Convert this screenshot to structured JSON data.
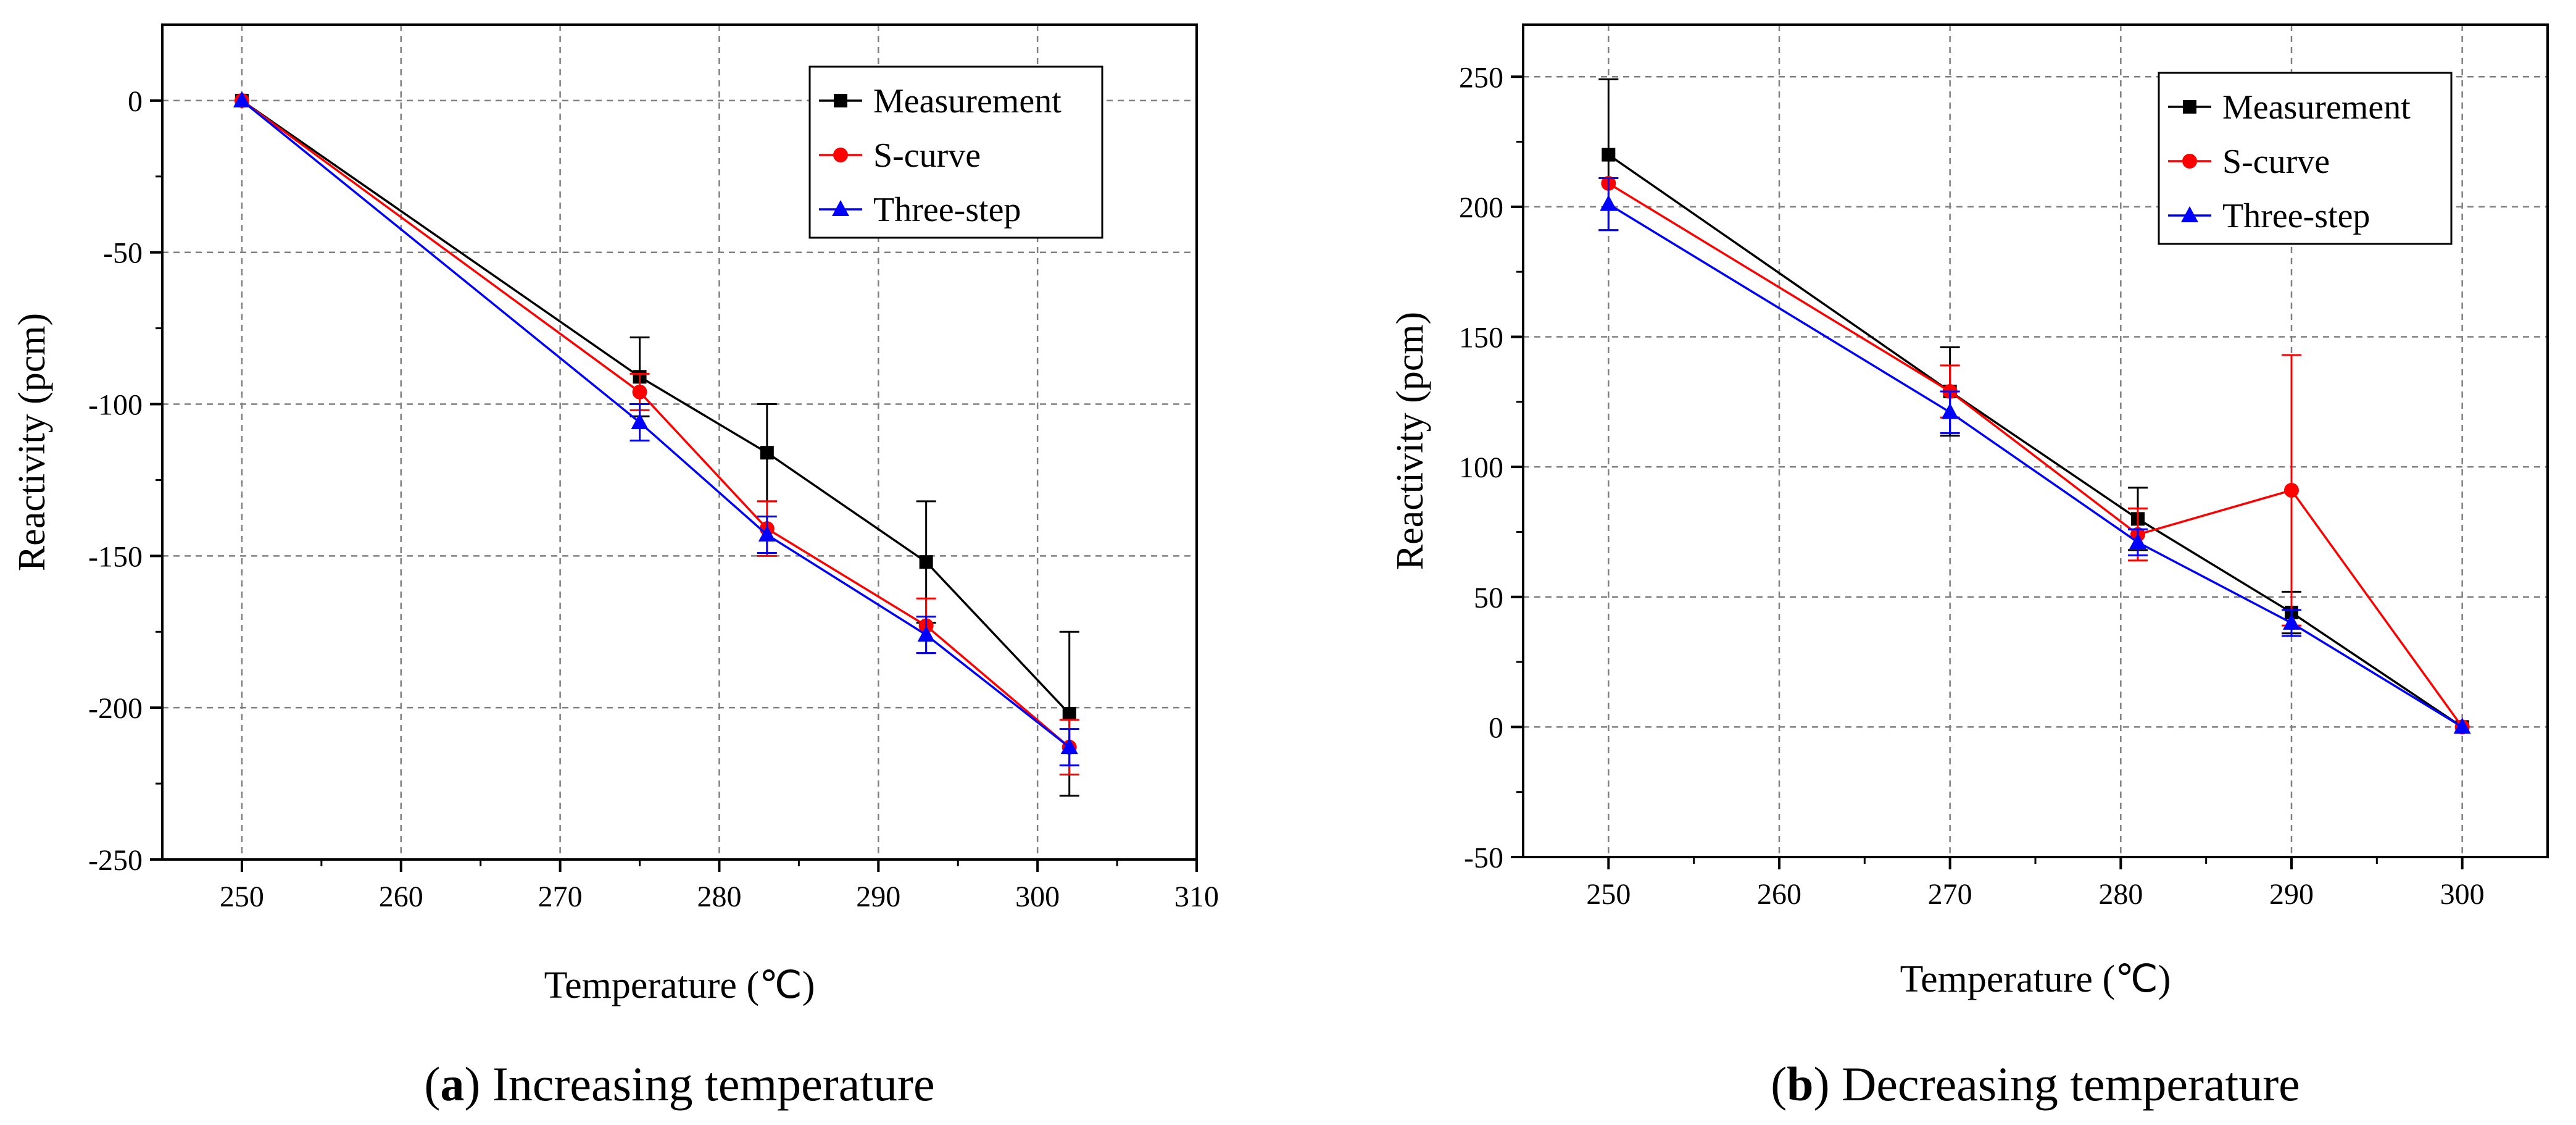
{
  "colors": {
    "Measurement": "#000000",
    "S-curve": "#ff0000",
    "Three-step": "#0000ff",
    "grid": "#808080"
  },
  "chart_data": [
    {
      "type": "line",
      "caption_letter": "a",
      "caption_text": "Increasing temperature",
      "xlabel": "Temperature (℃)",
      "ylabel": "Reactivity (pcm)",
      "xlim": [
        245,
        310
      ],
      "ylim": [
        -250,
        25
      ],
      "xticks": [
        250,
        260,
        270,
        280,
        290,
        300,
        310
      ],
      "yticks": [
        0,
        -50,
        -100,
        -150,
        -200,
        -250
      ],
      "grid": true,
      "legend_position": "top-right",
      "x": [
        250,
        275,
        283,
        293,
        302
      ],
      "series": [
        {
          "name": "Measurement",
          "marker": "square",
          "values": [
            0,
            -91,
            -116,
            -152,
            -202
          ],
          "errors": [
            0,
            13,
            16,
            20,
            27
          ]
        },
        {
          "name": "S-curve",
          "marker": "circle",
          "values": [
            0,
            -96,
            -141,
            -173,
            -213
          ],
          "errors": [
            0,
            6,
            9,
            9,
            9
          ]
        },
        {
          "name": "Three-step",
          "marker": "triangle",
          "values": [
            0,
            -106,
            -143,
            -176,
            -213
          ],
          "errors": [
            0,
            6,
            6,
            6,
            6
          ]
        }
      ]
    },
    {
      "type": "line",
      "caption_letter": "b",
      "caption_text": "Decreasing temperature",
      "xlabel": "Temperature (℃)",
      "ylabel": "Reactivity (pcm)",
      "xlim": [
        245,
        305
      ],
      "ylim": [
        -50,
        270
      ],
      "xticks": [
        250,
        260,
        270,
        280,
        290,
        300
      ],
      "yticks": [
        250,
        200,
        150,
        100,
        50,
        0,
        -50
      ],
      "grid": true,
      "legend_position": "top-right",
      "x": [
        250,
        270,
        281,
        290,
        300
      ],
      "series": [
        {
          "name": "Measurement",
          "marker": "square",
          "values": [
            220,
            129,
            80,
            44,
            0
          ],
          "errors": [
            29,
            17,
            12,
            8,
            0
          ]
        },
        {
          "name": "S-curve",
          "marker": "circle",
          "values": [
            209,
            129,
            74,
            91,
            0
          ],
          "errors": [
            0,
            10,
            10,
            52,
            0
          ]
        },
        {
          "name": "Three-step",
          "marker": "triangle",
          "values": [
            201,
            121,
            71,
            40,
            0
          ],
          "errors": [
            10,
            8,
            5,
            5,
            0
          ]
        }
      ]
    }
  ]
}
